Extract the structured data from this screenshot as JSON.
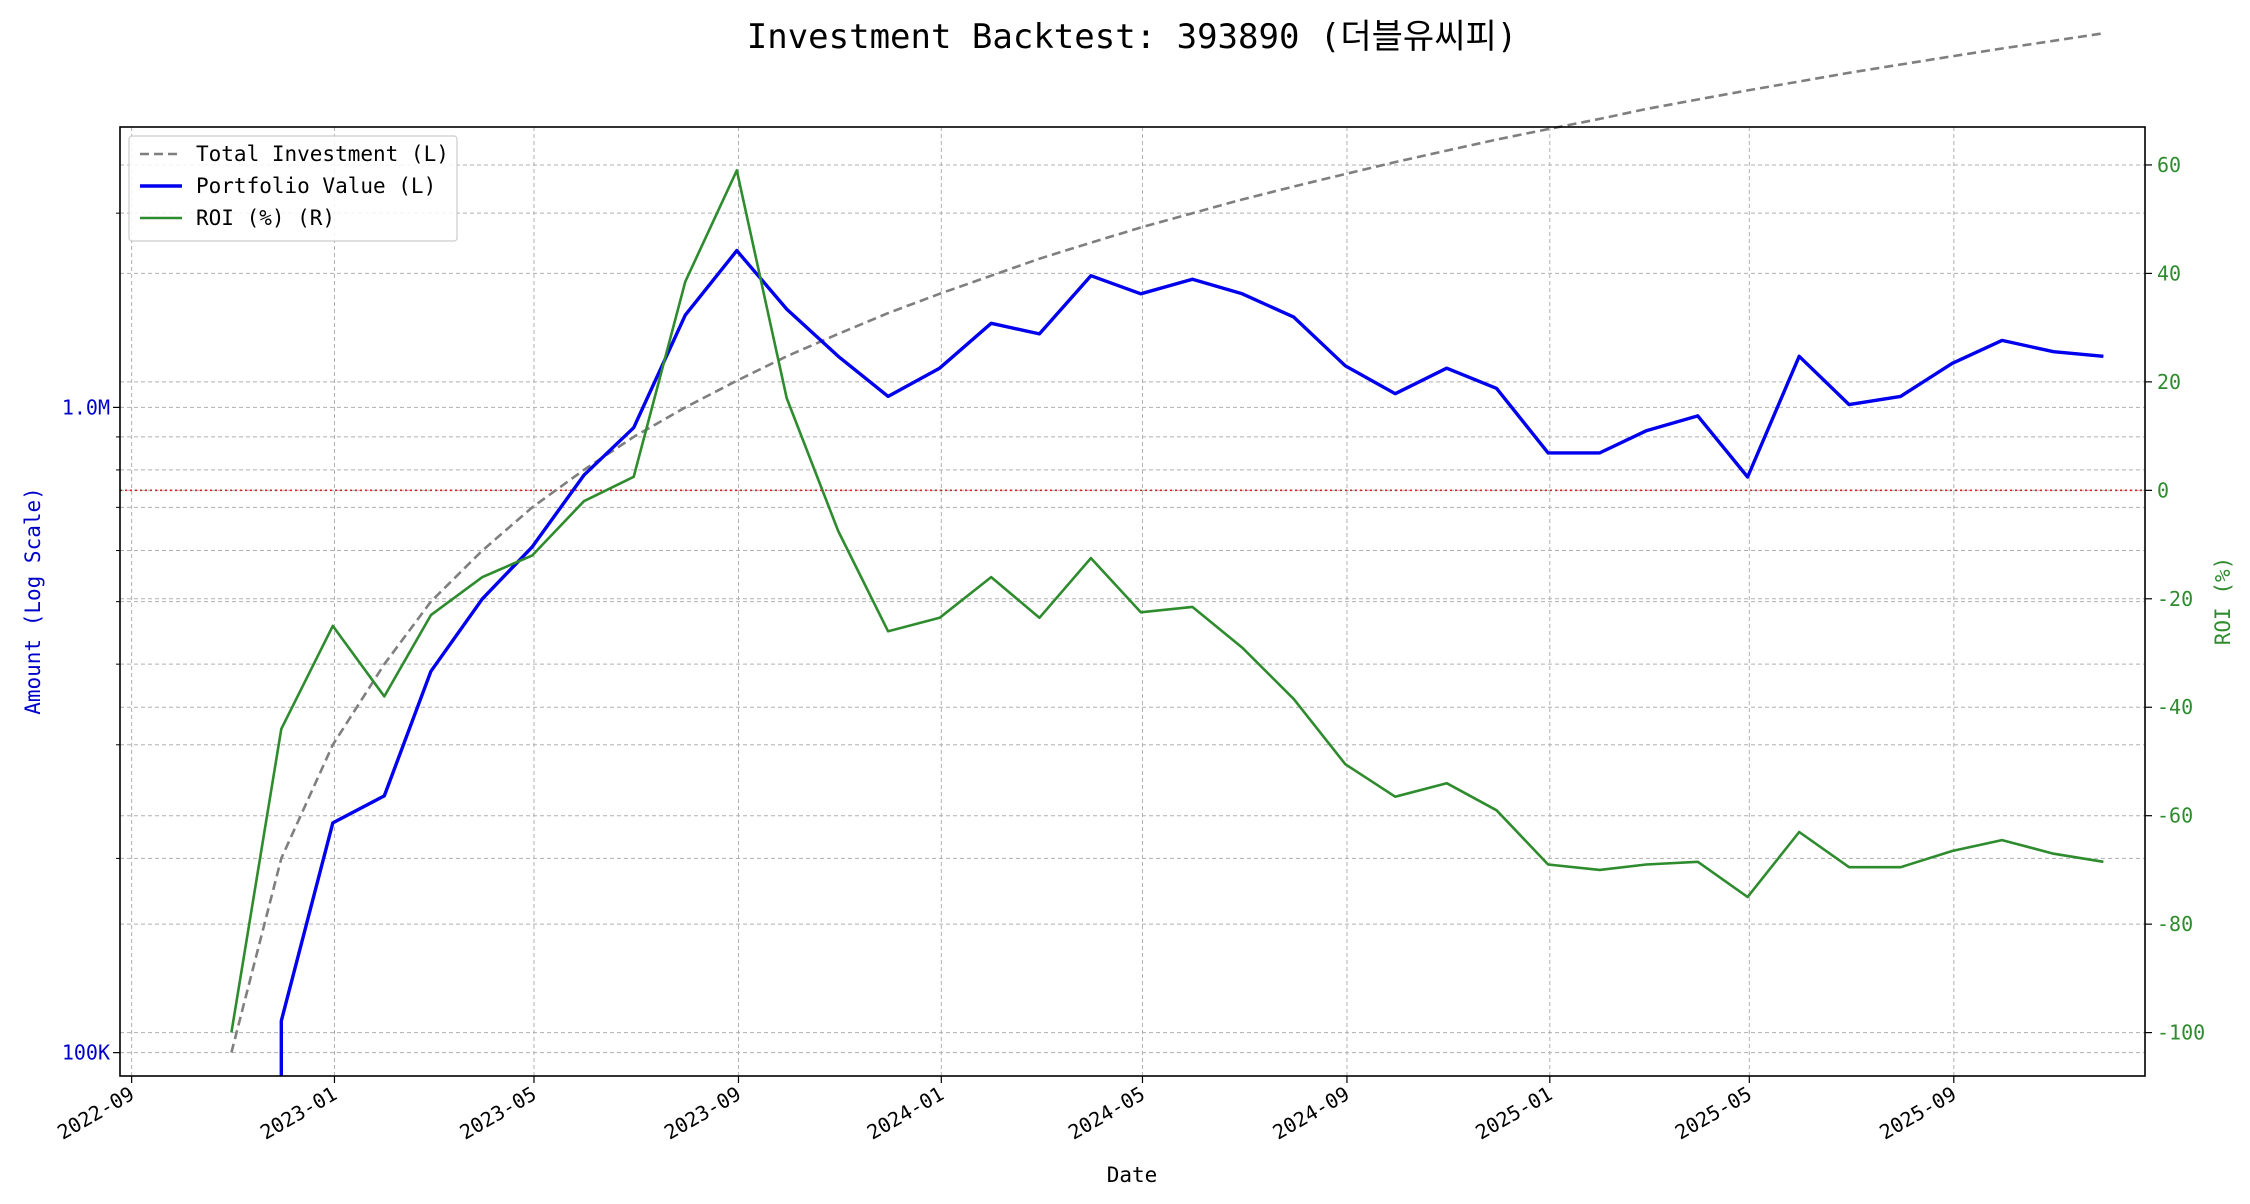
{
  "chart_data": {
    "type": "line",
    "title": "Investment Backtest: 393890 (더블유씨피)",
    "xlabel": "Date",
    "ylabel_left": "Amount (Log Scale)",
    "ylabel_right": "ROI (%)",
    "left_scale": "log",
    "left_ylim": [
      92000,
      2720000
    ],
    "right_ylim": [
      -108,
      67
    ],
    "xlim": [
      "2022-08-25",
      "2025-12-25"
    ],
    "grid": true,
    "legend_position": "top-left",
    "x_ticks": [
      "2022-09",
      "2023-01",
      "2023-05",
      "2023-09",
      "2024-01",
      "2024-05",
      "2024-09",
      "2025-01",
      "2025-05",
      "2025-09"
    ],
    "left_ticks": [
      {
        "value": 100000,
        "label": "100K"
      },
      {
        "value": 1000000,
        "label": "1.0M"
      }
    ],
    "left_minor_ticks": [
      200000,
      300000,
      400000,
      500000,
      600000,
      700000,
      800000,
      900000,
      2000000
    ],
    "right_ticks": [
      -100,
      -80,
      -60,
      -40,
      -20,
      0,
      20,
      40,
      60
    ],
    "reference_line": {
      "axis": "right",
      "value": 0,
      "color": "#d62728",
      "style": "dotted"
    },
    "dates": [
      "2022-10-31",
      "2022-11-30",
      "2022-12-31",
      "2023-01-31",
      "2023-02-28",
      "2023-03-31",
      "2023-04-30",
      "2023-05-31",
      "2023-06-30",
      "2023-07-31",
      "2023-08-31",
      "2023-09-30",
      "2023-10-31",
      "2023-11-30",
      "2023-12-31",
      "2024-01-31",
      "2024-02-29",
      "2024-03-31",
      "2024-04-30",
      "2024-05-31",
      "2024-06-30",
      "2024-07-31",
      "2024-08-31",
      "2024-09-30",
      "2024-10-31",
      "2024-11-30",
      "2024-12-31",
      "2025-01-31",
      "2025-02-28",
      "2025-03-31",
      "2025-04-30",
      "2025-05-31",
      "2025-06-30",
      "2025-07-31",
      "2025-08-31",
      "2025-09-30",
      "2025-10-31",
      "2025-11-30"
    ],
    "series": [
      {
        "name": "Total Investment (L)",
        "axis": "left",
        "color": "#7f7f7f",
        "style": "dashed",
        "values": [
          100000,
          200000,
          300000,
          400000,
          500000,
          600000,
          700000,
          800000,
          900000,
          1000000,
          1100000,
          1200000,
          1300000,
          1400000,
          1500000,
          1600000,
          1700000,
          1800000,
          1900000,
          2000000,
          2100000,
          2200000,
          2300000,
          2400000,
          2500000,
          2600000,
          2700000,
          2800000,
          2900000,
          3000000,
          3100000,
          3200000,
          3300000,
          3400000,
          3500000,
          3600000,
          3700000,
          3800000
        ]
      },
      {
        "name": "Portfolio Value (L)",
        "axis": "left",
        "color": "#0000ee",
        "style": "solid",
        "values": [
          null,
          112000,
          227000,
          250000,
          390000,
          505000,
          608000,
          785000,
          930000,
          1390000,
          1750000,
          1420000,
          1200000,
          1040000,
          1150000,
          1350000,
          1300000,
          1600000,
          1500000,
          1580000,
          1500000,
          1380000,
          1160000,
          1050000,
          1150000,
          1070000,
          850000,
          850000,
          920000,
          970000,
          780000,
          1200000,
          1010000,
          1040000,
          1170000,
          1270000,
          1220000,
          1200000
        ]
      },
      {
        "name": "ROI (%) (R)",
        "axis": "right",
        "color": "#2e8b2e",
        "style": "solid",
        "values": [
          -100,
          -44,
          -25,
          -38,
          -23,
          -16,
          -12,
          -2,
          2.5,
          38.5,
          59,
          17,
          -7.5,
          -26,
          -23.5,
          -16,
          -23.5,
          -12.5,
          -22.5,
          -21.5,
          -29,
          -38.5,
          -50.5,
          -56.5,
          -54,
          -59,
          -69,
          -70,
          -69,
          -68.5,
          -75,
          -63,
          -69.5,
          -69.5,
          -66.5,
          -64.5,
          -67,
          -68.5
        ]
      }
    ]
  }
}
